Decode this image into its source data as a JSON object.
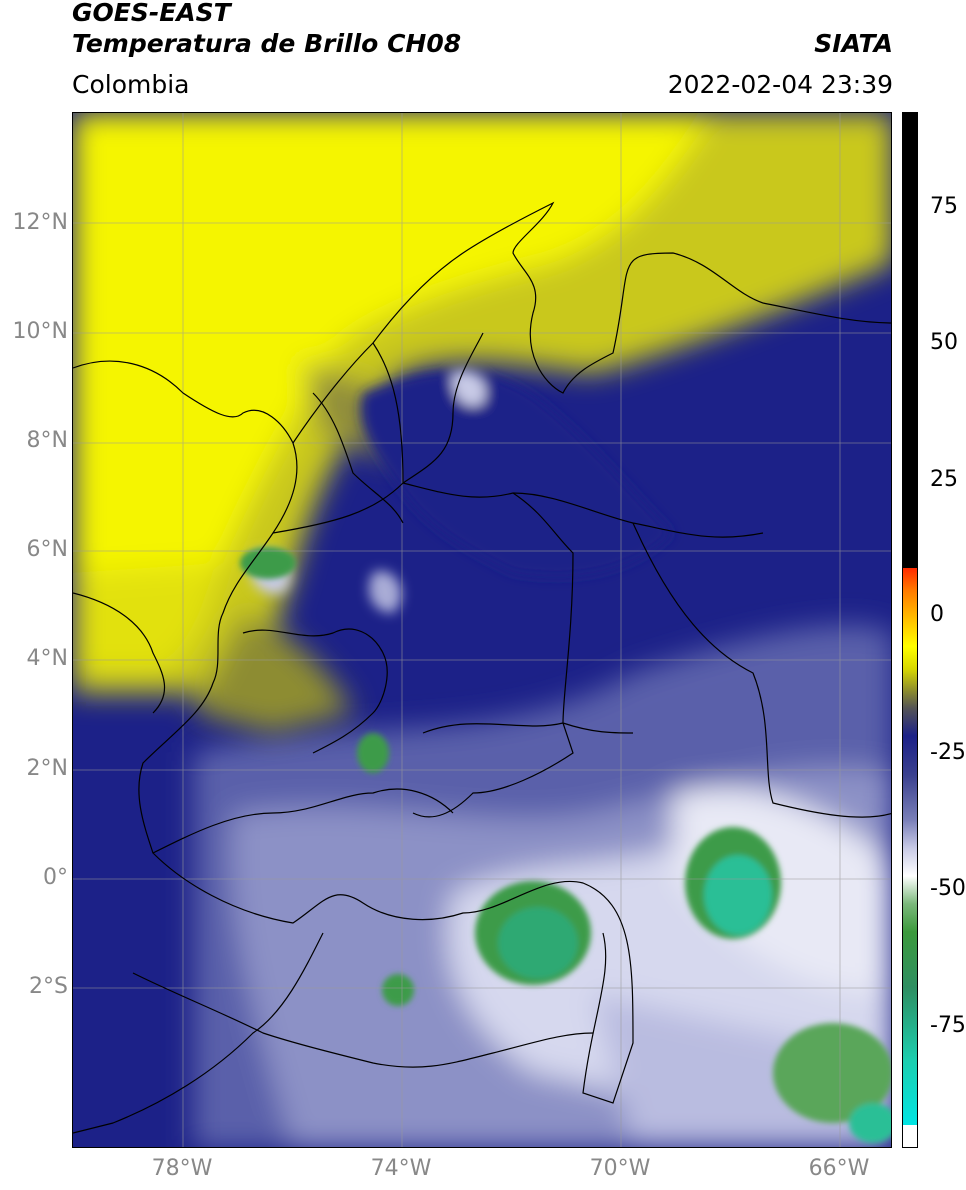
{
  "header": {
    "satellite": "GOES-EAST",
    "product": "Temperatura de Brillo CH08",
    "source": "SIATA",
    "region": "Colombia",
    "timestamp": "2022-02-04 23:39"
  },
  "axes": {
    "lat_ticks": [
      "12°N",
      "10°N",
      "8°N",
      "6°N",
      "4°N",
      "2°N",
      "0°",
      "2°S"
    ],
    "lon_ticks": [
      "78°W",
      "74°W",
      "70°W",
      "66°W"
    ]
  },
  "colorbar": {
    "ticks": [
      "75",
      "50",
      "25",
      "0",
      "-25",
      "-50",
      "-75"
    ],
    "colors": {
      "black": "#000000",
      "red": "#ff2a00",
      "orange": "#ff9900",
      "yellow": "#ffff00",
      "olive": "#8b8b2e",
      "gray": "#555555",
      "navy": "#141a7a",
      "blue_gray": "#7a7fb8",
      "white": "#ffffff",
      "green": "#3c9a3c",
      "teal": "#1ccfb0",
      "cyan": "#00e5e5"
    }
  },
  "map_colors": {
    "yellow": "#f3f300",
    "olive": "#b8b72a",
    "navy": "#1c2188",
    "mid_blue": "#5a61aa",
    "light_blue": "#c8cae6",
    "green": "#3e9b48",
    "teal": "#2bbf96",
    "border": "#000000",
    "grid": "#9a9a9a"
  }
}
